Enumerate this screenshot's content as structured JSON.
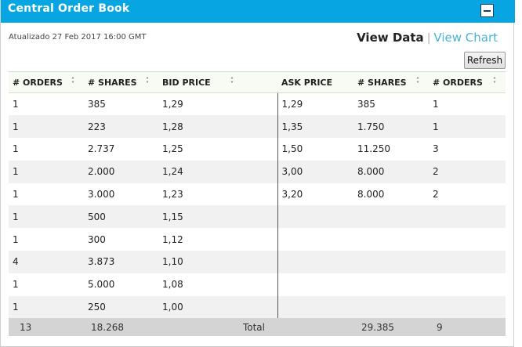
{
  "header": {
    "title": "Central Order Book"
  },
  "updated": "Atualizado 27 Feb 2017 16:00 GMT",
  "views": {
    "data": "View Data",
    "chart": "View Chart",
    "separator": "|"
  },
  "refresh_label": "Refresh",
  "columns": {
    "bid_orders": "# ORDERS",
    "bid_shares": "# SHARES",
    "bid_price": "BID PRICE",
    "ask_price": "ASK PRICE",
    "ask_shares": "# SHARES",
    "ask_orders": "# ORDERS"
  },
  "rows": [
    {
      "bid_orders": "1",
      "bid_shares": "385",
      "bid_price": "1,29",
      "ask_price": "1,29",
      "ask_shares": "385",
      "ask_orders": "1"
    },
    {
      "bid_orders": "1",
      "bid_shares": "223",
      "bid_price": "1,28",
      "ask_price": "1,35",
      "ask_shares": "1.750",
      "ask_orders": "1"
    },
    {
      "bid_orders": "1",
      "bid_shares": "2.737",
      "bid_price": "1,25",
      "ask_price": "1,50",
      "ask_shares": "11.250",
      "ask_orders": "3"
    },
    {
      "bid_orders": "1",
      "bid_shares": "2.000",
      "bid_price": "1,24",
      "ask_price": "3,00",
      "ask_shares": "8.000",
      "ask_orders": "2"
    },
    {
      "bid_orders": "1",
      "bid_shares": "3.000",
      "bid_price": "1,23",
      "ask_price": "3,20",
      "ask_shares": "8.000",
      "ask_orders": "2"
    },
    {
      "bid_orders": "1",
      "bid_shares": "500",
      "bid_price": "1,15",
      "ask_price": "",
      "ask_shares": "",
      "ask_orders": ""
    },
    {
      "bid_orders": "1",
      "bid_shares": "300",
      "bid_price": "1,12",
      "ask_price": "",
      "ask_shares": "",
      "ask_orders": ""
    },
    {
      "bid_orders": "4",
      "bid_shares": "3.873",
      "bid_price": "1,10",
      "ask_price": "",
      "ask_shares": "",
      "ask_orders": ""
    },
    {
      "bid_orders": "1",
      "bid_shares": "5.000",
      "bid_price": "1,08",
      "ask_price": "",
      "ask_shares": "",
      "ask_orders": ""
    },
    {
      "bid_orders": "1",
      "bid_shares": "250",
      "bid_price": "1,00",
      "ask_price": "",
      "ask_shares": "",
      "ask_orders": ""
    }
  ],
  "totals": {
    "bid_orders": "13",
    "bid_shares": "18.268",
    "label": "Total",
    "ask_shares": "29.385",
    "ask_orders": "9"
  },
  "colors": {
    "titlebar": "#07a6e3",
    "view_chart_link": "#49b4d6"
  }
}
